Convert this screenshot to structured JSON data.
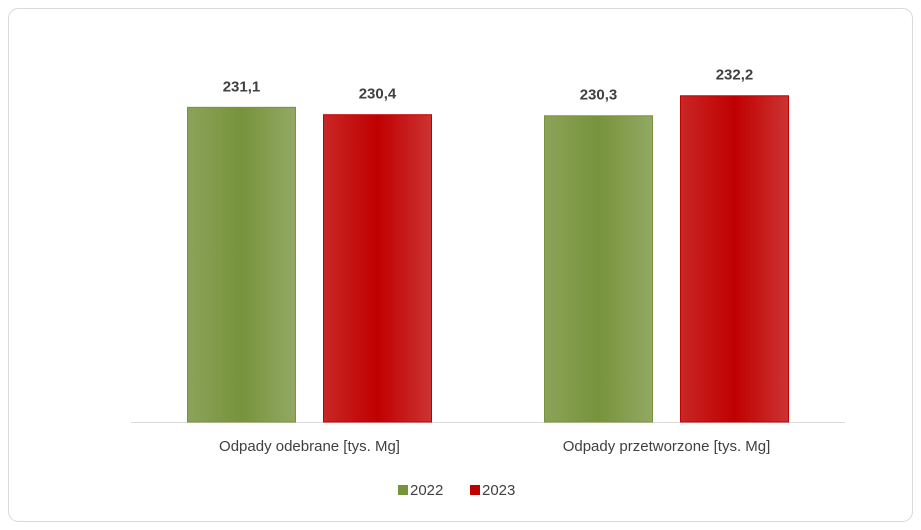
{
  "chart_data": {
    "type": "bar",
    "categories": [
      "Odpady odebrane [tys. Mg]",
      "Odpady przetworzone [tys. Mg]"
    ],
    "series": [
      {
        "name": "2022",
        "color": "#77933c",
        "values": [
          231.1,
          230.3
        ],
        "value_labels": [
          "231,1",
          "230,3"
        ]
      },
      {
        "name": "2023",
        "color": "#c00000",
        "values": [
          230.4,
          232.2
        ],
        "value_labels": [
          "230,4",
          "232,2"
        ]
      }
    ],
    "ylim": [
      201.2,
      235.6
    ],
    "legend": "bottom"
  }
}
